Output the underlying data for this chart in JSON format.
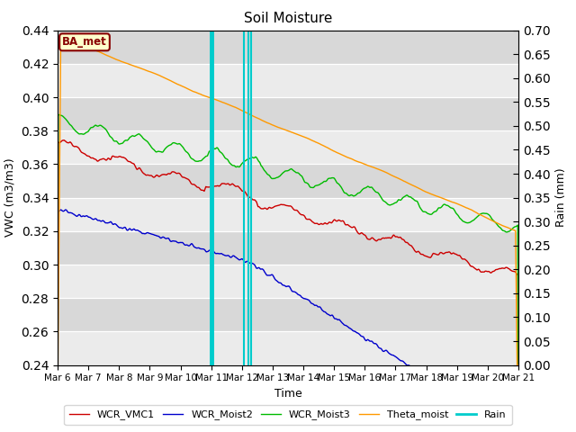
{
  "title": "Soil Moisture",
  "xlabel": "Time",
  "ylabel_left": "VWC (m3/m3)",
  "ylabel_right": "Rain (mm)",
  "ylim_left": [
    0.24,
    0.44
  ],
  "ylim_right": [
    0.0,
    0.7
  ],
  "yticks_left": [
    0.24,
    0.26,
    0.28,
    0.3,
    0.32,
    0.34,
    0.36,
    0.38,
    0.4,
    0.42,
    0.44
  ],
  "yticks_right": [
    0.0,
    0.05,
    0.1,
    0.15,
    0.2,
    0.25,
    0.3,
    0.35,
    0.4,
    0.45,
    0.5,
    0.55,
    0.6,
    0.65,
    0.7
  ],
  "xtick_labels": [
    "Mar 6",
    "Mar 7",
    "Mar 8",
    "Mar 9",
    "Mar 10",
    "Mar 11",
    "Mar 12",
    "Mar 13",
    "Mar 14",
    "Mar 15",
    "Mar 16",
    "Mar 17",
    "Mar 18",
    "Mar 19",
    "Mar 20",
    "Mar 21"
  ],
  "colors": {
    "WCR_VMC1": "#cc0000",
    "WCR_Moist2": "#0000cc",
    "WCR_Moist3": "#00bb00",
    "Theta_moist": "#ff9900",
    "Rain": "#00cccc"
  },
  "bg_color": "#e8e8e8",
  "bg_color_alt": "#d8d8d8",
  "annotation_text": "BA_met",
  "annotation_color": "#880000",
  "annotation_bg": "#ffffcc",
  "rain_wide": [
    5.0
  ],
  "rain_narrow": [
    6.05,
    6.2,
    6.3
  ],
  "rain_wide_lw": 3.5,
  "rain_narrow_lw": 1.5
}
